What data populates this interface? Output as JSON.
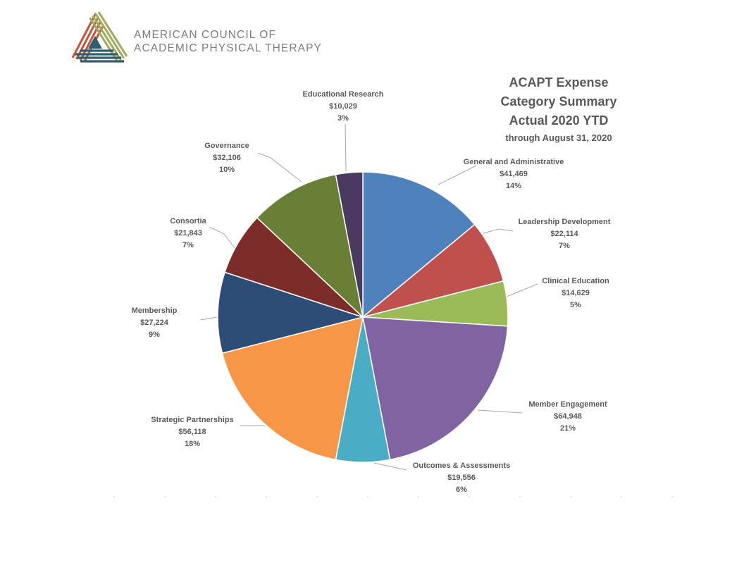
{
  "logo": {
    "org_line1": "AMERICAN COUNCIL OF",
    "org_line2": "ACADEMIC PHYSICAL THERAPY",
    "colors": {
      "red": "#C15A3D",
      "olive": "#A2AC62",
      "teal": "#2F5D6B",
      "text": "#7B7C7E"
    }
  },
  "chart": {
    "title_line1": "ACAPT Expense",
    "title_line2": "Category Summary",
    "title_line3": "Actual 2020 YTD",
    "subtitle": "through August 31, 2020",
    "title_color": "#595959",
    "label_color": "#595959",
    "leader_line_color": "#A6A6A6"
  },
  "chart_data": {
    "type": "pie",
    "title": "ACAPT Expense Category Summary Actual 2020 YTD through August 31, 2020",
    "start_angle_deg": -90,
    "direction": "clockwise",
    "slices": [
      {
        "label": "General and Administrative",
        "value_text": "$41,469",
        "value": 41469,
        "pct": 14,
        "color": "#4F81BD"
      },
      {
        "label": "Leadership Development",
        "value_text": "$22,114",
        "value": 22114,
        "pct": 7,
        "color": "#C0504D"
      },
      {
        "label": "Clinical Education",
        "value_text": "$14,629",
        "value": 14629,
        "pct": 5,
        "color": "#9BBB59"
      },
      {
        "label": "Member Engagement",
        "value_text": "$64,948",
        "value": 64948,
        "pct": 21,
        "color": "#8064A2"
      },
      {
        "label": "Outcomes & Assessments",
        "value_text": "$19,556",
        "value": 19556,
        "pct": 6,
        "color": "#4BACC6"
      },
      {
        "label": "Strategic Partnerships",
        "value_text": "$56,118",
        "value": 56118,
        "pct": 18,
        "color": "#F79646"
      },
      {
        "label": "Membership",
        "value_text": "$27,224",
        "value": 27224,
        "pct": 9,
        "color": "#2E4D76"
      },
      {
        "label": "Consortia",
        "value_text": "$21,843",
        "value": 21843,
        "pct": 7,
        "color": "#7C2D29"
      },
      {
        "label": "Governance",
        "value_text": "$32,106",
        "value": 32106,
        "pct": 10,
        "color": "#697F35"
      },
      {
        "label": "Educational Research",
        "value_text": "$10,029",
        "value": 10029,
        "pct": 3,
        "color": "#4A3A60"
      }
    ]
  }
}
